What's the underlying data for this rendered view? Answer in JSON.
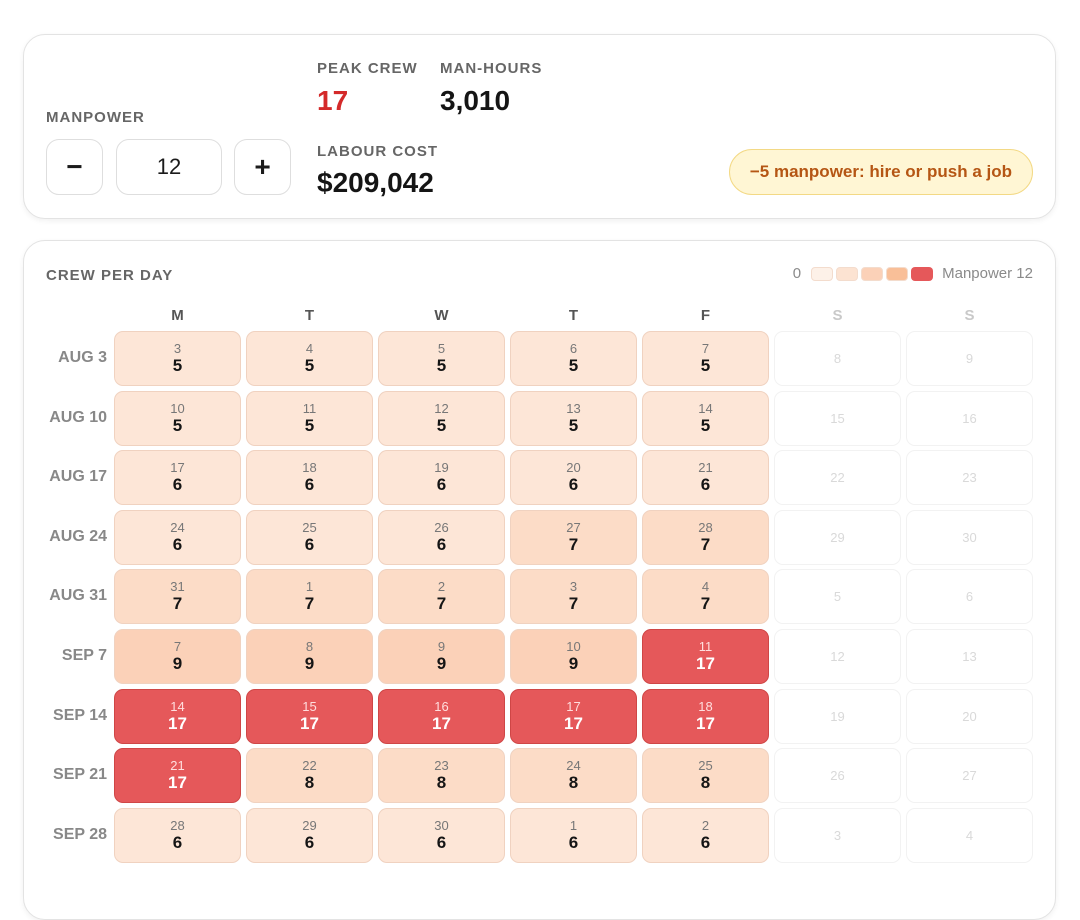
{
  "summary": {
    "manpower_label": "MANPOWER",
    "minus_label": "−",
    "plus_label": "+",
    "manpower_value": "12",
    "peak_crew_label": "PEAK CREW",
    "peak_crew_value": "17",
    "man_hours_label": "MAN-HOURS",
    "man_hours_value": "3,010",
    "labour_cost_label": "LABOUR COST",
    "labour_cost_value": "$209,042",
    "warning_text": "−5 manpower: hire or push a job"
  },
  "calendar": {
    "title": "CREW PER DAY",
    "legend": {
      "min_label": "0",
      "max_label": "Manpower 12",
      "swatches": [
        "#fdf1e8",
        "#fce3d2",
        "#fbd1b8",
        "#f9bf98",
        "#e5585a"
      ]
    },
    "day_headers": [
      "M",
      "T",
      "W",
      "T",
      "F",
      "S",
      "S"
    ],
    "colors": {
      "level_1": "#fde6d7",
      "level_2": "#fcdcc7",
      "level_3": "#fbd1b8",
      "over": "#e5585a"
    },
    "weeks": [
      {
        "label": "AUG 3",
        "weekdays": [
          {
            "d": "3",
            "v": "5"
          },
          {
            "d": "4",
            "v": "5"
          },
          {
            "d": "5",
            "v": "5"
          },
          {
            "d": "6",
            "v": "5"
          },
          {
            "d": "7",
            "v": "5"
          }
        ],
        "weekend": [
          "8",
          "9"
        ]
      },
      {
        "label": "AUG 10",
        "weekdays": [
          {
            "d": "10",
            "v": "5"
          },
          {
            "d": "11",
            "v": "5"
          },
          {
            "d": "12",
            "v": "5"
          },
          {
            "d": "13",
            "v": "5"
          },
          {
            "d": "14",
            "v": "5"
          }
        ],
        "weekend": [
          "15",
          "16"
        ]
      },
      {
        "label": "AUG 17",
        "weekdays": [
          {
            "d": "17",
            "v": "6"
          },
          {
            "d": "18",
            "v": "6"
          },
          {
            "d": "19",
            "v": "6"
          },
          {
            "d": "20",
            "v": "6"
          },
          {
            "d": "21",
            "v": "6"
          }
        ],
        "weekend": [
          "22",
          "23"
        ]
      },
      {
        "label": "AUG 24",
        "weekdays": [
          {
            "d": "24",
            "v": "6"
          },
          {
            "d": "25",
            "v": "6"
          },
          {
            "d": "26",
            "v": "6"
          },
          {
            "d": "27",
            "v": "7"
          },
          {
            "d": "28",
            "v": "7"
          }
        ],
        "weekend": [
          "29",
          "30"
        ]
      },
      {
        "label": "AUG 31",
        "weekdays": [
          {
            "d": "31",
            "v": "7"
          },
          {
            "d": "1",
            "v": "7"
          },
          {
            "d": "2",
            "v": "7"
          },
          {
            "d": "3",
            "v": "7"
          },
          {
            "d": "4",
            "v": "7"
          }
        ],
        "weekend": [
          "5",
          "6"
        ]
      },
      {
        "label": "SEP 7",
        "weekdays": [
          {
            "d": "7",
            "v": "9"
          },
          {
            "d": "8",
            "v": "9"
          },
          {
            "d": "9",
            "v": "9"
          },
          {
            "d": "10",
            "v": "9"
          },
          {
            "d": "11",
            "v": "17"
          }
        ],
        "weekend": [
          "12",
          "13"
        ]
      },
      {
        "label": "SEP 14",
        "weekdays": [
          {
            "d": "14",
            "v": "17"
          },
          {
            "d": "15",
            "v": "17"
          },
          {
            "d": "16",
            "v": "17"
          },
          {
            "d": "17",
            "v": "17"
          },
          {
            "d": "18",
            "v": "17"
          }
        ],
        "weekend": [
          "19",
          "20"
        ]
      },
      {
        "label": "SEP 21",
        "weekdays": [
          {
            "d": "21",
            "v": "17"
          },
          {
            "d": "22",
            "v": "8"
          },
          {
            "d": "23",
            "v": "8"
          },
          {
            "d": "24",
            "v": "8"
          },
          {
            "d": "25",
            "v": "8"
          }
        ],
        "weekend": [
          "26",
          "27"
        ]
      },
      {
        "label": "SEP 28",
        "weekdays": [
          {
            "d": "28",
            "v": "6"
          },
          {
            "d": "29",
            "v": "6"
          },
          {
            "d": "30",
            "v": "6"
          },
          {
            "d": "1",
            "v": "6"
          },
          {
            "d": "2",
            "v": "6"
          }
        ],
        "weekend": [
          "3",
          "4"
        ]
      }
    ]
  }
}
